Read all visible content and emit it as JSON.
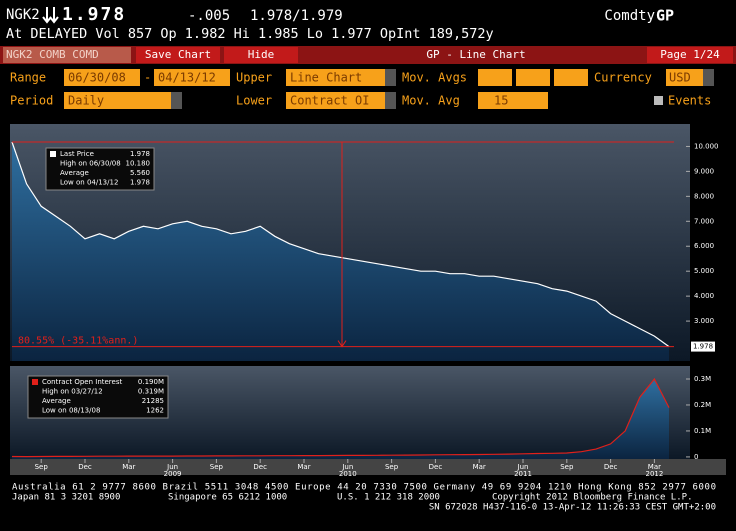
{
  "header": {
    "ticker": "NGK2",
    "price": "1.978",
    "change": "-.005",
    "bid_ask": "1.978/1.979",
    "market": "Comdty",
    "function": "GP",
    "info": "At DELAYED Vol 857 Op 1.982 Hi 1.985 Lo 1.977 OpInt 189,572y"
  },
  "toolbar": {
    "security": "NGK2 COMB COMD",
    "save": "Save Chart",
    "hide": "Hide",
    "title": "GP - Line Chart",
    "page": "Page 1/24"
  },
  "settings": {
    "range_label": "Range",
    "start": "06/30/08",
    "dash": "-",
    "end": "04/13/12",
    "upper_label": "Upper",
    "upper": "Line Chart",
    "mov_avgs_label": "Mov. Avgs",
    "currency_label": "Currency",
    "currency": "USD",
    "period_label": "Period",
    "period": "Daily",
    "lower_label": "Lower",
    "lower": "Contract OI",
    "mov_avg_label": "Mov. Avg",
    "mov_avg": "15",
    "events": "Events"
  },
  "chart_data": [
    {
      "type": "line",
      "x": [
        "2008-07",
        "2008-08",
        "2008-09",
        "2008-10",
        "2008-11",
        "2008-12",
        "2009-01",
        "2009-02",
        "2009-03",
        "2009-04",
        "2009-05",
        "2009-06",
        "2009-07",
        "2009-08",
        "2009-09",
        "2009-10",
        "2009-11",
        "2009-12",
        "2010-01",
        "2010-02",
        "2010-03",
        "2010-04",
        "2010-05",
        "2010-06",
        "2010-07",
        "2010-08",
        "2010-09",
        "2010-10",
        "2010-11",
        "2010-12",
        "2011-01",
        "2011-02",
        "2011-03",
        "2011-04",
        "2011-05",
        "2011-06",
        "2011-07",
        "2011-08",
        "2011-09",
        "2011-10",
        "2011-11",
        "2011-12",
        "2012-01",
        "2012-02",
        "2012-03",
        "2012-04"
      ],
      "series": [
        {
          "name": "Last Price",
          "color": "#ffffff",
          "values": [
            10.18,
            8.5,
            7.6,
            7.2,
            6.8,
            6.3,
            6.5,
            6.3,
            6.6,
            6.8,
            6.7,
            6.9,
            7.0,
            6.8,
            6.7,
            6.5,
            6.6,
            6.8,
            6.4,
            6.1,
            5.9,
            5.7,
            5.6,
            5.5,
            5.4,
            5.3,
            5.2,
            5.1,
            5.0,
            5.0,
            4.9,
            4.9,
            4.8,
            4.8,
            4.7,
            4.6,
            4.5,
            4.3,
            4.2,
            4.0,
            3.8,
            3.3,
            3.0,
            2.7,
            2.4,
            1.978
          ]
        }
      ],
      "ylim": [
        1.4,
        10.9
      ],
      "yticks": [
        {
          "value": 3,
          "label": "3.000"
        },
        {
          "value": 4,
          "label": "4.000"
        },
        {
          "value": 5,
          "label": "5.000"
        },
        {
          "value": 6,
          "label": "6.000"
        },
        {
          "value": 7,
          "label": "7.000"
        },
        {
          "value": 8,
          "label": "8.000"
        },
        {
          "value": 9,
          "label": "9.000"
        },
        {
          "value": 10,
          "label": "10.000"
        }
      ],
      "stats": [
        {
          "label": "Last Price",
          "value": 1.978
        },
        {
          "label": "High on 06/30/08",
          "value": 10.18,
          "value_label": "10.180"
        },
        {
          "label": "Average",
          "value": 5.56,
          "value_label": "5.560"
        },
        {
          "label": "Low on 04/13/12",
          "value": 1.978
        }
      ],
      "annotation": "80.55% (-35.11%ann.)"
    },
    {
      "type": "line",
      "x": [
        "2008-07",
        "2008-08",
        "2008-09",
        "2008-10",
        "2008-11",
        "2008-12",
        "2009-01",
        "2009-02",
        "2009-03",
        "2009-04",
        "2009-05",
        "2009-06",
        "2009-07",
        "2009-08",
        "2009-09",
        "2009-10",
        "2009-11",
        "2009-12",
        "2010-01",
        "2010-02",
        "2010-03",
        "2010-04",
        "2010-05",
        "2010-06",
        "2010-07",
        "2010-08",
        "2010-09",
        "2010-10",
        "2010-11",
        "2010-12",
        "2011-01",
        "2011-02",
        "2011-03",
        "2011-04",
        "2011-05",
        "2011-06",
        "2011-07",
        "2011-08",
        "2011-09",
        "2011-10",
        "2011-11",
        "2011-12",
        "2012-01",
        "2012-02",
        "2012-03",
        "2012-04"
      ],
      "series": [
        {
          "name": "Contract Open Interest",
          "color": "#e0201a",
          "values": [
            1500,
            1262,
            1800,
            2000,
            2200,
            2500,
            2600,
            2800,
            3000,
            3000,
            3200,
            3300,
            3500,
            3600,
            3800,
            4000,
            4200,
            4400,
            4600,
            4800,
            5000,
            5200,
            5500,
            5800,
            6000,
            6300,
            6600,
            7000,
            7500,
            8000,
            8500,
            9000,
            9500,
            10000,
            11000,
            12000,
            13000,
            14000,
            15000,
            20000,
            30000,
            50000,
            100000,
            230000,
            300000,
            190000
          ]
        }
      ],
      "ylim": [
        -8000,
        350000
      ],
      "yticks": [
        0,
        {
          "value": 100000,
          "label": "0.1M"
        },
        {
          "value": 200000,
          "label": "0.2M"
        },
        {
          "value": 300000,
          "label": "0.3M"
        }
      ],
      "stats": [
        {
          "label": "Contract Open Interest",
          "value": 190000,
          "value_label": "0.190M"
        },
        {
          "label": "High on 03/27/12",
          "value": 319000,
          "value_label": "0.319M"
        },
        {
          "label": "Average",
          "value": 21285
        },
        {
          "label": "Low on 08/13/08",
          "value": 1262
        }
      ],
      "xticks": [
        {
          "value": "2008-09",
          "label": "Sep"
        },
        {
          "value": "2008-12",
          "label": "Dec"
        },
        {
          "value": "2009-03",
          "label": "Mar"
        },
        {
          "value": "2009-06",
          "label": "Jun"
        },
        {
          "value": "2009-09",
          "label": "Sep"
        },
        {
          "value": "2009-12",
          "label": "Dec"
        },
        {
          "value": "2010-03",
          "label": "Mar"
        },
        {
          "value": "2010-06",
          "label": "Jun"
        },
        {
          "value": "2010-09",
          "label": "Sep"
        },
        {
          "value": "2010-12",
          "label": "Dec"
        },
        {
          "value": "2011-03",
          "label": "Mar"
        },
        {
          "value": "2011-06",
          "label": "Jun"
        },
        {
          "value": "2011-09",
          "label": "Sep"
        },
        {
          "value": "2011-12",
          "label": "Dec"
        },
        {
          "value": "2012-03",
          "label": "Mar"
        }
      ],
      "year_ticks": [
        {
          "value": "2009-06",
          "label": "2009"
        },
        {
          "value": "2010-06",
          "label": "2010"
        },
        {
          "value": "2011-06",
          "label": "2011"
        },
        {
          "value": "2012-03",
          "label": "2012"
        }
      ]
    }
  ],
  "footer": [
    "Australia 61 2 9777 8600 Brazil 5511 3048 4500 Europe 44 20 7330 7500 Germany 49 69 9204 1210 Hong Kong 852 2977 6000",
    "Japan 81 3 3201 8900",
    "Singapore 65 6212 1000",
    "U.S. 1 212 318 2000",
    "Copyright 2012 Bloomberg Finance L.P.",
    "SN 672028 H437-116-0 13-Apr-12 11:26:33 CEST GMT+2:00"
  ]
}
